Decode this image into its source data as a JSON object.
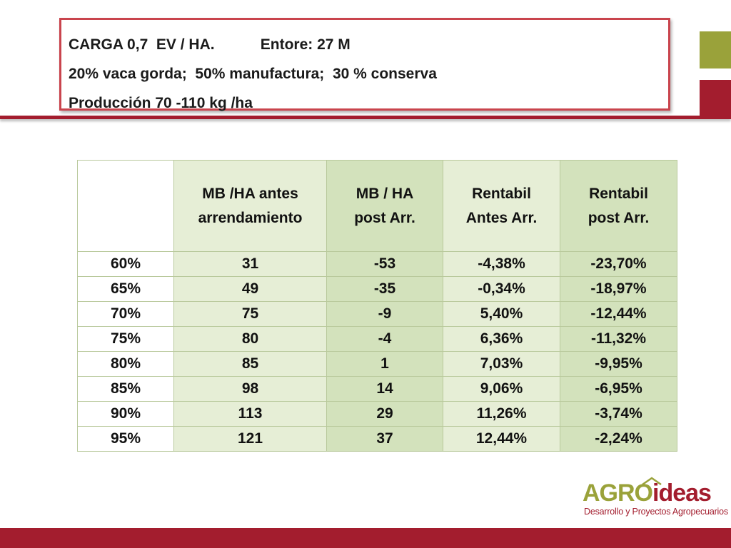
{
  "title": {
    "line1": "CARGA 0,7  EV / HA.           Entore: 27 M",
    "line2": "20% vaca gorda;  50% manufactura;  30 % conserva",
    "line3": "Producción 70 -110 kg /ha"
  },
  "table": {
    "headers": [
      "",
      "MB /HA antes arrendamiento",
      "MB / HA post Arr.",
      "Rentabil Antes Arr.",
      "Rentabil post Arr."
    ],
    "header_lines": [
      [],
      [
        "MB /HA antes",
        "arrendamiento"
      ],
      [
        "MB / HA",
        "post Arr."
      ],
      [
        "Rentabil",
        "Antes Arr."
      ],
      [
        "Rentabil",
        "post Arr."
      ]
    ],
    "rows": [
      [
        "60%",
        "31",
        "-53",
        "-4,38%",
        "-23,70%"
      ],
      [
        "65%",
        "49",
        "-35",
        "-0,34%",
        "-18,97%"
      ],
      [
        "70%",
        "75",
        "-9",
        "5,40%",
        "-12,44%"
      ],
      [
        "75%",
        "80",
        "-4",
        "6,36%",
        "-11,32%"
      ],
      [
        "80%",
        "85",
        "1",
        "7,03%",
        "-9,95%"
      ],
      [
        "85%",
        "98",
        "14",
        "9,06%",
        "-6,95%"
      ],
      [
        "90%",
        "113",
        "29",
        "11,26%",
        "-3,74%"
      ],
      [
        "95%",
        "121",
        "37",
        "12,44%",
        "-2,24%"
      ]
    ]
  },
  "logo": {
    "name_part1": "AGRO",
    "name_part2": "ideas",
    "tagline": "Desarrollo y Proyectos Agropecuarios"
  },
  "colors": {
    "brand_red": "#a31d2e",
    "brand_olive": "#9aa23a",
    "table_light": "#e6eed6",
    "table_dark": "#d3e2bc"
  }
}
